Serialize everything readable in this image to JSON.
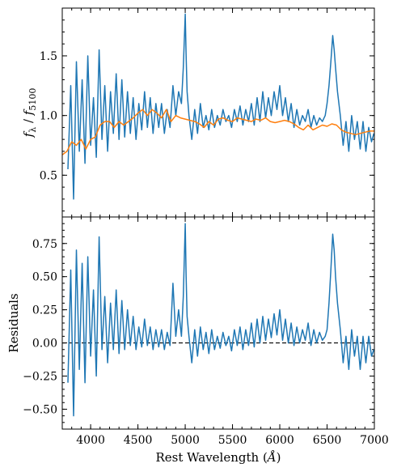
{
  "chart_data": [
    {
      "type": "line",
      "panel": "top",
      "ylabel_parts": [
        "f",
        "λ",
        " / ",
        "f",
        "5100"
      ],
      "xlim": [
        3700,
        7000
      ],
      "ylim": [
        0.15,
        1.9
      ],
      "yticks": [
        0.5,
        1.0,
        1.5
      ],
      "ytick_labels": [
        "0.5",
        "1.0",
        "1.5"
      ],
      "colors": {
        "observed": "#1f77b4",
        "model": "#ff7f0e"
      },
      "series": [
        {
          "key": "observed",
          "x": [
            3760,
            3790,
            3820,
            3850,
            3880,
            3910,
            3940,
            3970,
            4000,
            4030,
            4060,
            4090,
            4120,
            4150,
            4180,
            4210,
            4240,
            4270,
            4300,
            4330,
            4360,
            4390,
            4420,
            4450,
            4480,
            4510,
            4540,
            4570,
            4600,
            4630,
            4660,
            4690,
            4720,
            4750,
            4780,
            4810,
            4840,
            4870,
            4900,
            4930,
            4960,
            4980,
            5000,
            5010,
            5020,
            5040,
            5070,
            5100,
            5130,
            5160,
            5190,
            5220,
            5250,
            5280,
            5310,
            5340,
            5370,
            5400,
            5430,
            5460,
            5490,
            5520,
            5550,
            5580,
            5610,
            5640,
            5670,
            5700,
            5730,
            5760,
            5790,
            5820,
            5850,
            5880,
            5910,
            5940,
            5970,
            6000,
            6030,
            6060,
            6090,
            6120,
            6150,
            6180,
            6210,
            6240,
            6270,
            6300,
            6330,
            6360,
            6390,
            6420,
            6450,
            6480,
            6500,
            6520,
            6540,
            6560,
            6575,
            6590,
            6610,
            6640,
            6670,
            6700,
            6730,
            6760,
            6790,
            6820,
            6850,
            6880,
            6910,
            6940,
            6970,
            6995
          ],
          "y": [
            0.55,
            1.25,
            0.3,
            1.45,
            0.7,
            1.3,
            0.6,
            1.5,
            0.75,
            1.15,
            0.65,
            1.55,
            0.8,
            1.25,
            0.7,
            1.2,
            0.85,
            1.35,
            0.8,
            1.3,
            0.82,
            1.2,
            0.85,
            1.15,
            0.8,
            1.1,
            0.88,
            1.2,
            0.9,
            1.15,
            0.85,
            1.1,
            0.9,
            1.1,
            0.85,
            1.05,
            0.9,
            1.25,
            1.0,
            1.2,
            1.1,
            1.4,
            1.85,
            1.5,
            1.2,
            1.0,
            0.8,
            1.05,
            0.85,
            1.1,
            0.9,
            1.0,
            0.88,
            1.05,
            0.9,
            1.0,
            0.92,
            1.05,
            0.95,
            1.0,
            0.9,
            1.05,
            0.95,
            1.08,
            0.92,
            1.05,
            0.95,
            1.1,
            0.92,
            1.15,
            0.95,
            1.2,
            0.98,
            1.15,
            1.0,
            1.2,
            1.05,
            1.25,
            1.0,
            1.15,
            0.95,
            1.1,
            0.9,
            1.05,
            0.92,
            1.0,
            0.95,
            1.05,
            0.9,
            1.0,
            0.92,
            0.98,
            0.95,
            1.0,
            1.1,
            1.25,
            1.45,
            1.67,
            1.55,
            1.4,
            1.2,
            1.0,
            0.75,
            0.95,
            0.7,
            1.0,
            0.8,
            0.95,
            0.72,
            0.95,
            0.7,
            0.9,
            0.78,
            0.85
          ]
        },
        {
          "key": "model",
          "x": [
            3700,
            3750,
            3800,
            3850,
            3900,
            3950,
            4000,
            4050,
            4100,
            4150,
            4200,
            4250,
            4300,
            4350,
            4400,
            4450,
            4500,
            4550,
            4600,
            4650,
            4700,
            4750,
            4800,
            4850,
            4900,
            4950,
            5000,
            5050,
            5100,
            5150,
            5200,
            5250,
            5300,
            5350,
            5400,
            5450,
            5500,
            5550,
            5600,
            5650,
            5700,
            5750,
            5800,
            5850,
            5900,
            5950,
            6000,
            6050,
            6100,
            6150,
            6200,
            6250,
            6300,
            6350,
            6400,
            6450,
            6500,
            6550,
            6600,
            6650,
            6700,
            6750,
            6800,
            6850,
            6900,
            6950,
            7000
          ],
          "y": [
            0.67,
            0.7,
            0.78,
            0.75,
            0.8,
            0.72,
            0.8,
            0.82,
            0.92,
            0.95,
            0.95,
            0.9,
            0.95,
            0.92,
            0.95,
            0.98,
            1.02,
            1.05,
            1.0,
            1.05,
            1.02,
            0.98,
            1.05,
            0.95,
            1.0,
            0.98,
            0.97,
            0.96,
            0.95,
            0.93,
            0.9,
            0.95,
            0.92,
            0.97,
            0.98,
            0.96,
            0.95,
            0.98,
            0.97,
            0.96,
            0.95,
            0.97,
            0.96,
            0.98,
            0.95,
            0.94,
            0.95,
            0.96,
            0.95,
            0.93,
            0.9,
            0.88,
            0.92,
            0.88,
            0.9,
            0.92,
            0.91,
            0.93,
            0.92,
            0.88,
            0.86,
            0.85,
            0.84,
            0.85,
            0.86,
            0.87,
            0.87
          ]
        }
      ]
    },
    {
      "type": "line",
      "panel": "bottom",
      "ylabel": "Residuals",
      "xlabel_text": "Rest Wavelength (",
      "xlabel_unit": "Å",
      "xlabel_close": ")",
      "xlim": [
        3700,
        7000
      ],
      "ylim": [
        -0.65,
        0.95
      ],
      "xticks": [
        4000,
        4500,
        5000,
        5500,
        6000,
        6500,
        7000
      ],
      "xtick_labels": [
        "4000",
        "4500",
        "5000",
        "5500",
        "6000",
        "6500",
        "7000"
      ],
      "yticks": [
        -0.5,
        -0.25,
        0.0,
        0.25,
        0.5,
        0.75
      ],
      "ytick_labels": [
        "−0.50",
        "−0.25",
        "0.00",
        "0.25",
        "0.50",
        "0.75"
      ],
      "zero_line": 0.0,
      "colors": {
        "residuals": "#1f77b4",
        "zero_line": "#000000"
      },
      "series": [
        {
          "key": "residuals",
          "x": [
            3760,
            3790,
            3820,
            3850,
            3880,
            3910,
            3940,
            3970,
            4000,
            4030,
            4060,
            4090,
            4120,
            4150,
            4180,
            4210,
            4240,
            4270,
            4300,
            4330,
            4360,
            4390,
            4420,
            4450,
            4480,
            4510,
            4540,
            4570,
            4600,
            4630,
            4660,
            4690,
            4720,
            4750,
            4780,
            4810,
            4840,
            4870,
            4900,
            4930,
            4960,
            4980,
            5000,
            5010,
            5020,
            5040,
            5070,
            5100,
            5130,
            5160,
            5190,
            5220,
            5250,
            5280,
            5310,
            5340,
            5370,
            5400,
            5430,
            5460,
            5490,
            5520,
            5550,
            5580,
            5610,
            5640,
            5670,
            5700,
            5730,
            5760,
            5790,
            5820,
            5850,
            5880,
            5910,
            5940,
            5970,
            6000,
            6030,
            6060,
            6090,
            6120,
            6150,
            6180,
            6210,
            6240,
            6270,
            6300,
            6330,
            6360,
            6390,
            6420,
            6450,
            6480,
            6500,
            6520,
            6540,
            6560,
            6575,
            6590,
            6610,
            6640,
            6670,
            6700,
            6730,
            6760,
            6790,
            6820,
            6850,
            6880,
            6910,
            6940,
            6970,
            6995
          ],
          "y": [
            -0.3,
            0.55,
            -0.55,
            0.7,
            -0.2,
            0.6,
            -0.3,
            0.65,
            -0.1,
            0.4,
            -0.25,
            0.8,
            -0.05,
            0.35,
            -0.15,
            0.3,
            -0.05,
            0.4,
            -0.08,
            0.32,
            -0.05,
            0.25,
            -0.02,
            0.2,
            -0.05,
            0.12,
            -0.03,
            0.18,
            -0.02,
            0.12,
            -0.05,
            0.1,
            -0.03,
            0.1,
            -0.05,
            0.08,
            -0.02,
            0.45,
            0.05,
            0.25,
            0.05,
            0.35,
            0.9,
            0.5,
            0.2,
            0.05,
            -0.15,
            0.1,
            -0.1,
            0.12,
            -0.05,
            0.08,
            -0.08,
            0.1,
            -0.05,
            0.05,
            -0.04,
            0.08,
            -0.02,
            0.05,
            -0.06,
            0.1,
            -0.02,
            0.12,
            -0.05,
            0.1,
            -0.02,
            0.15,
            -0.03,
            0.18,
            0.0,
            0.2,
            0.02,
            0.18,
            0.04,
            0.22,
            0.06,
            0.25,
            0.02,
            0.18,
            0.0,
            0.15,
            -0.02,
            0.12,
            0.0,
            0.1,
            0.02,
            0.15,
            -0.02,
            0.1,
            0.0,
            0.08,
            0.02,
            0.05,
            0.1,
            0.3,
            0.55,
            0.82,
            0.7,
            0.5,
            0.3,
            0.1,
            -0.15,
            0.05,
            -0.2,
            0.1,
            -0.1,
            0.05,
            -0.2,
            0.05,
            -0.15,
            0.05,
            -0.1,
            -0.05
          ]
        }
      ]
    }
  ]
}
